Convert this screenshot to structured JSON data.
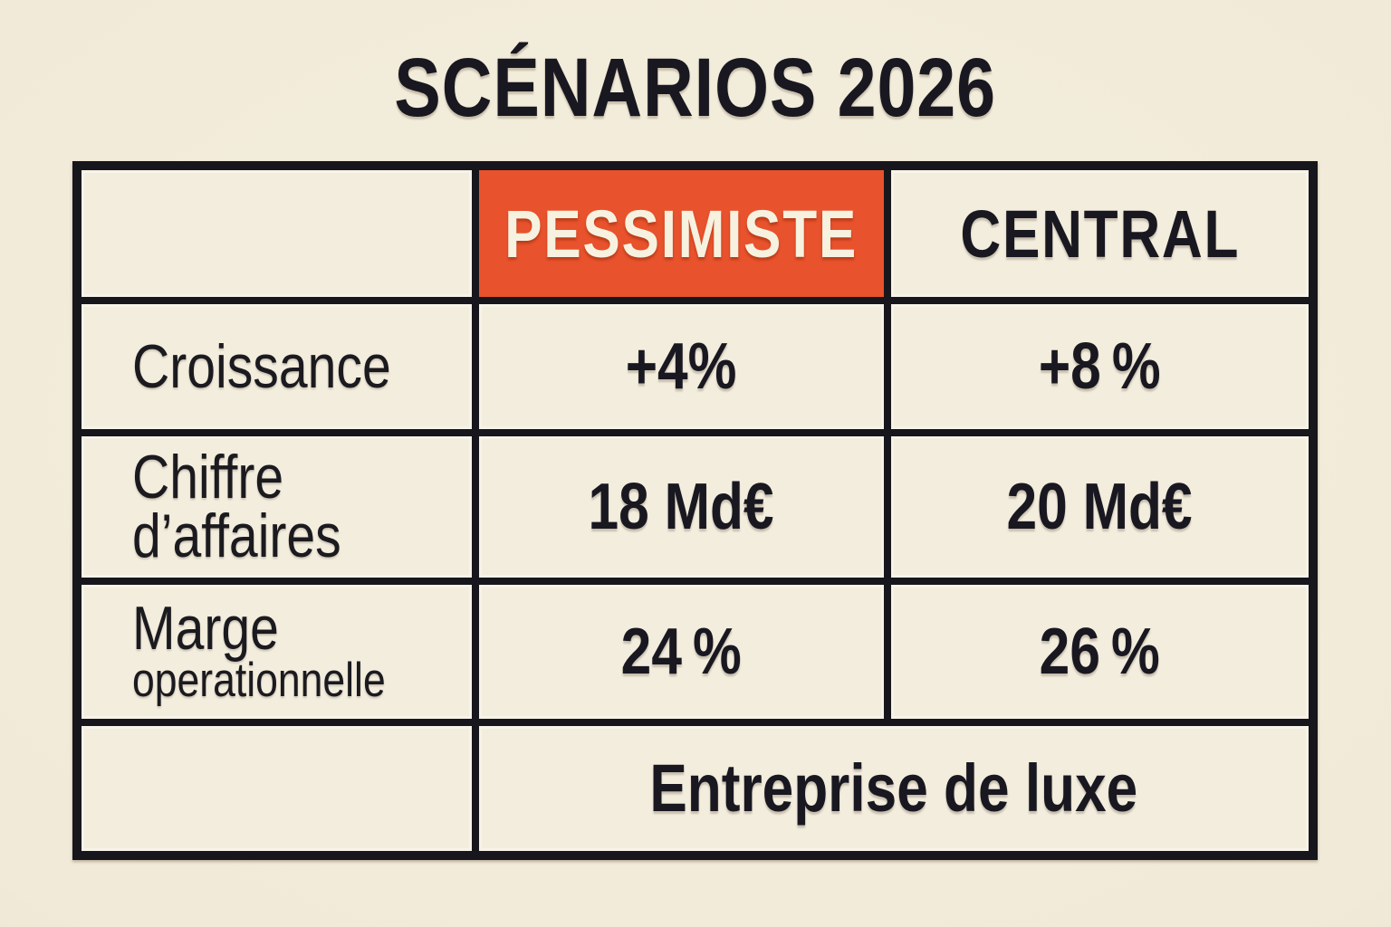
{
  "colors": {
    "background": "#f1ead8",
    "ink": "#17161c",
    "accent_orange": "#e8522c",
    "cell_background": "#f3edde",
    "header_text_on_accent": "#f7f1e0"
  },
  "title": "SCÉNARIOS 2026",
  "table": {
    "header": {
      "corner": "",
      "pessimiste": "PESSIMISTE",
      "central": "CENTRAL"
    },
    "rows": [
      {
        "label": "Croissance",
        "pessimiste": "+4%",
        "central": "+8 %"
      },
      {
        "label": "Chiffre d’affaires",
        "pessimiste": "18 Md€",
        "central": "20 Md€"
      },
      {
        "label": "Marge",
        "label_sub": "operationnelle",
        "pessimiste": "24 %",
        "central": "26 %"
      }
    ],
    "footer": {
      "left": "",
      "merged_value": "Entreprise de luxe"
    }
  },
  "chart_data": {
    "type": "table",
    "title": "SCÉNARIOS 2026",
    "columns": [
      "",
      "PESSIMISTE",
      "CENTRAL"
    ],
    "rows": [
      [
        "Croissance",
        "+4%",
        "+8%"
      ],
      [
        "Chiffre d’affaires",
        "18 Md€",
        "20 Md€"
      ],
      [
        "Marge operationnelle",
        "24%",
        "26%"
      ],
      [
        "",
        "Entreprise de luxe (spans both scenario columns)",
        ""
      ]
    ],
    "highlighted_column": "PESSIMISTE",
    "highlight_color": "#e8522c"
  }
}
